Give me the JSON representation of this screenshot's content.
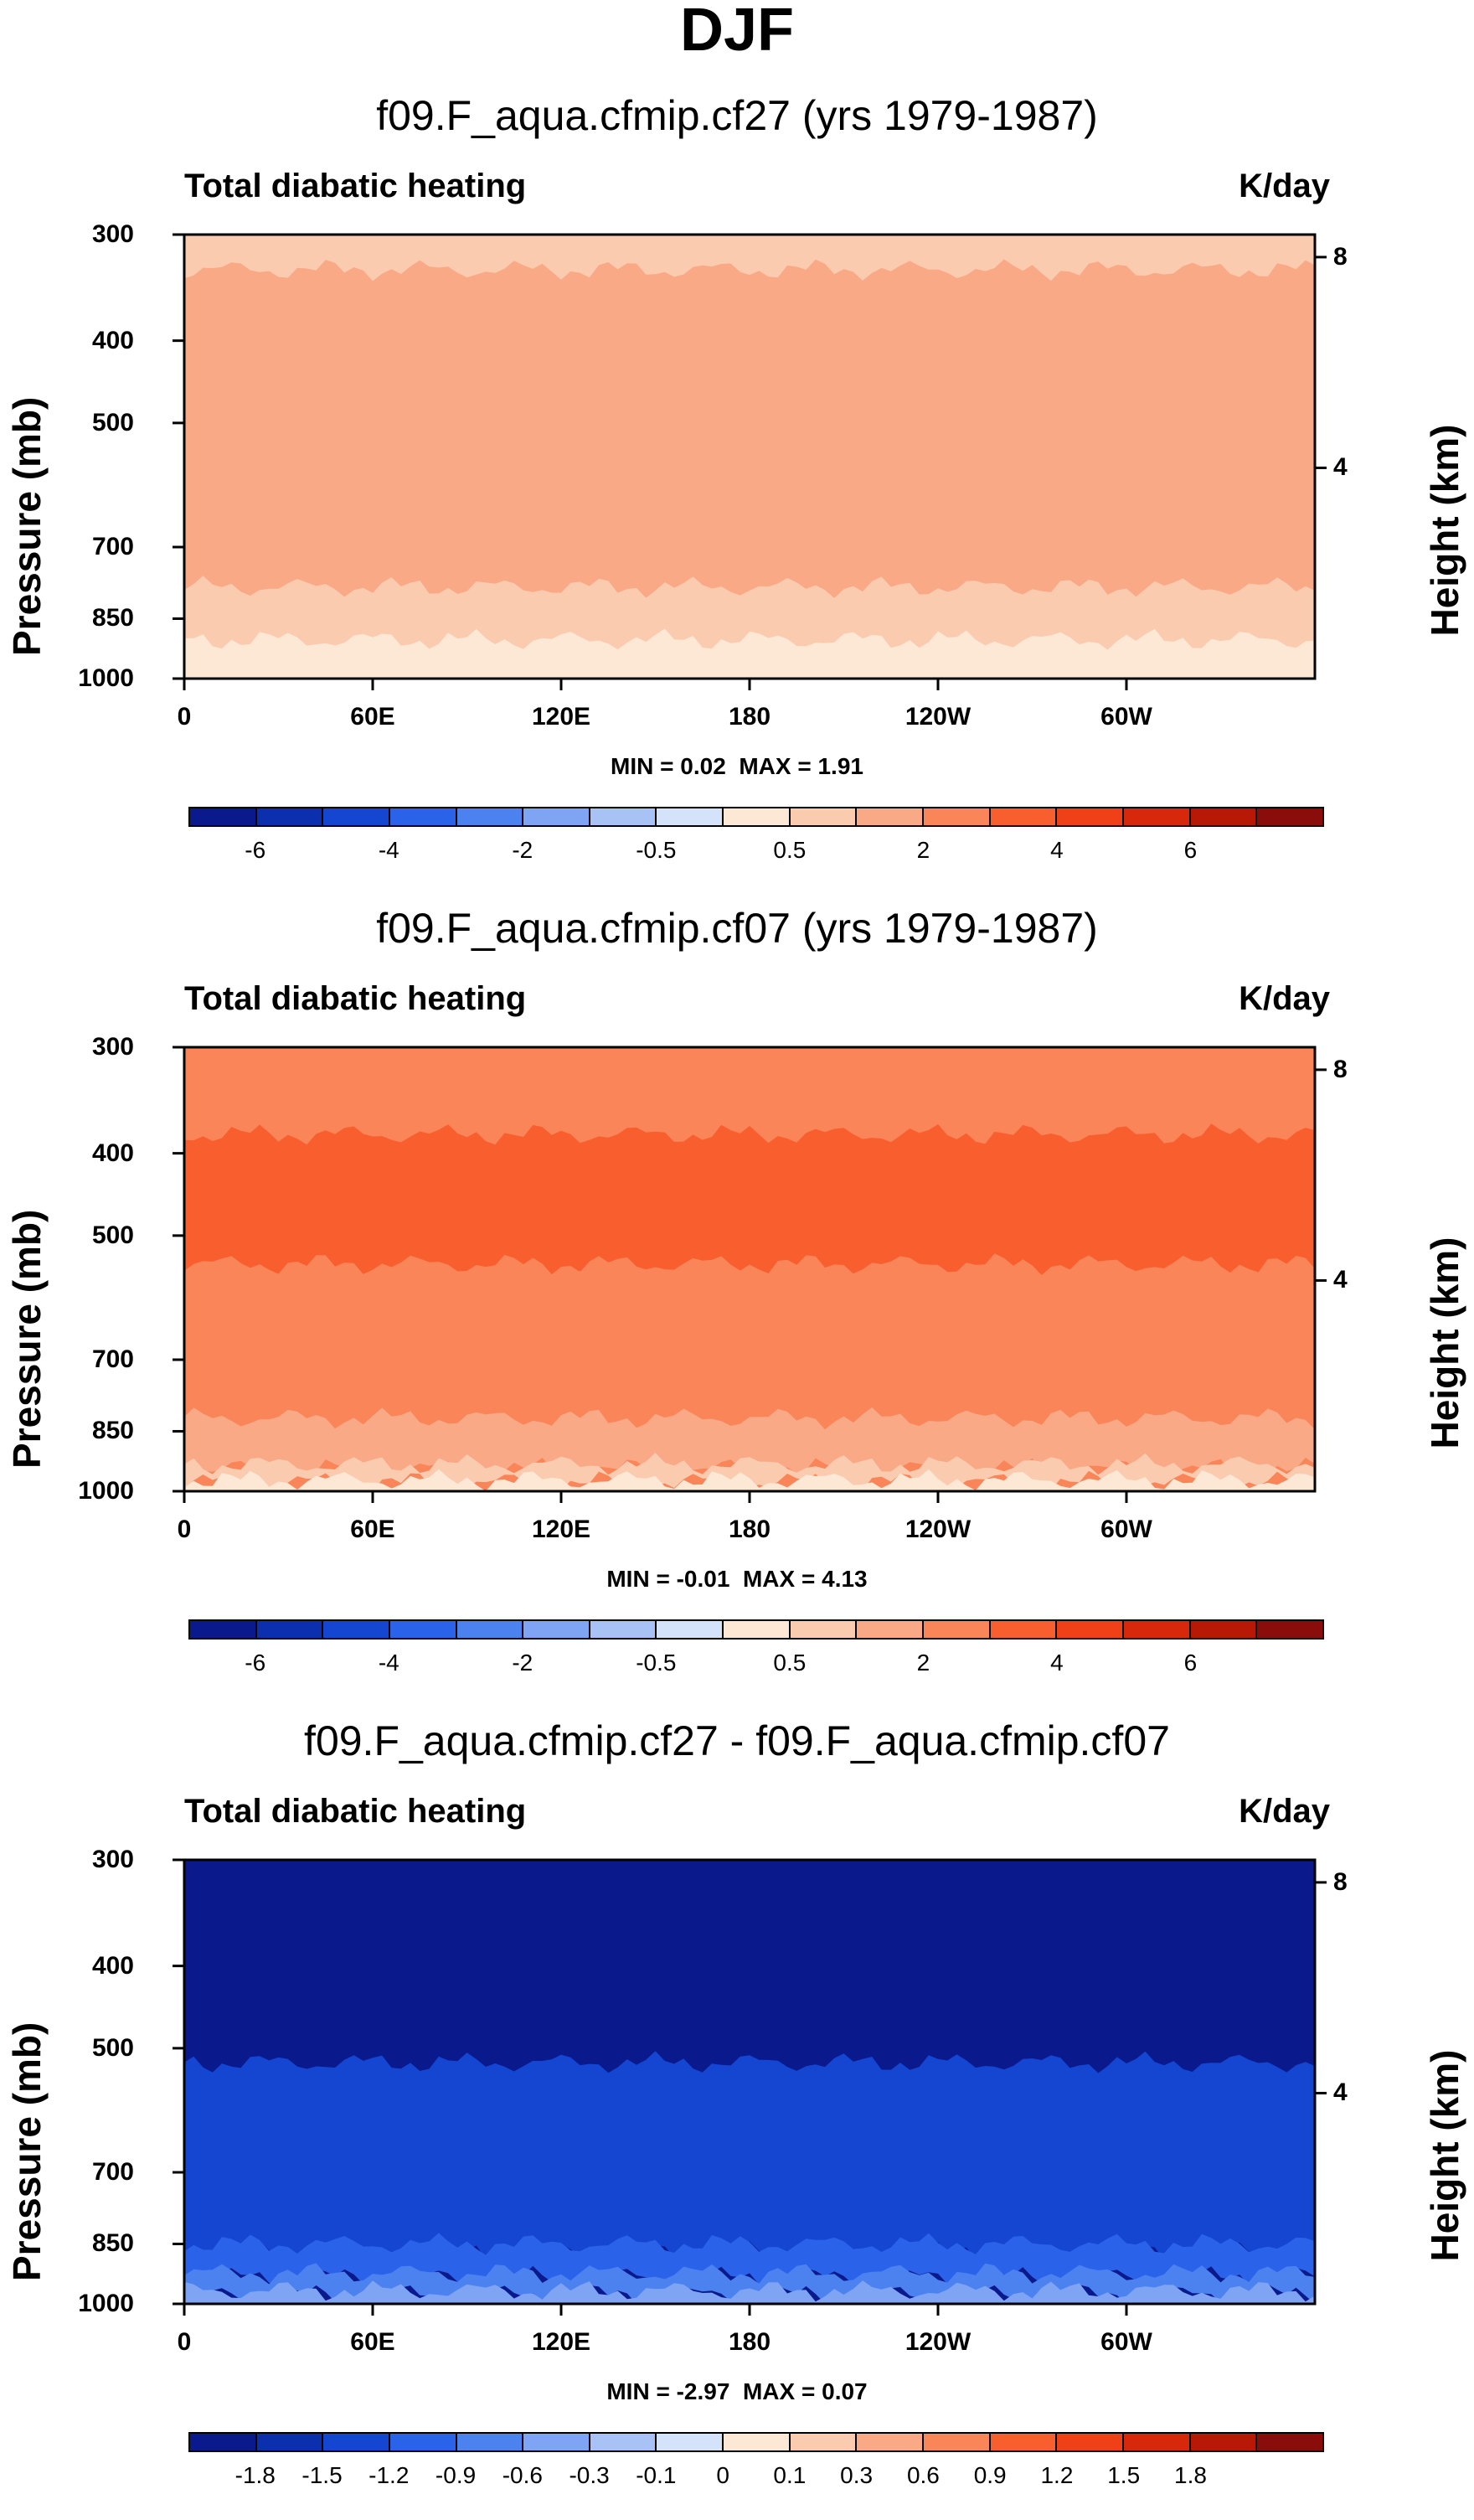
{
  "figure": {
    "title": "DJF"
  },
  "chart_data": [
    {
      "type": "heatmap",
      "title": "f09.F_aqua.cfmip.cf27 (yrs 1979-1987)",
      "left_label": "Total diabatic heating",
      "right_label": "K/day",
      "xlabel": "",
      "ylabel": "Pressure (mb)",
      "y2label": "Height (km)",
      "x_ticks": [
        "0",
        "60E",
        "120E",
        "180",
        "120W",
        "60W"
      ],
      "x_tick_values": [
        0,
        60,
        120,
        180,
        240,
        300
      ],
      "xlim": [
        0,
        360
      ],
      "y_ticks": [
        "300",
        "400",
        "500",
        "700",
        "850",
        "1000"
      ],
      "y_tick_values": [
        300,
        400,
        500,
        700,
        850,
        1000
      ],
      "ylim": [
        300,
        1000
      ],
      "y2_ticks": [
        "8",
        "4"
      ],
      "y2_tick_values": [
        8,
        4
      ],
      "min_label": "MIN = ",
      "min_value": "0.02",
      "max_label": "MAX = ",
      "max_value": "1.91",
      "colorbar_labels": [
        "-6",
        "-4",
        "-2",
        "-0.5",
        "0.5",
        "2",
        "4",
        "6"
      ],
      "colorbar_levels": [
        -7,
        -6,
        -5,
        -4,
        -3,
        -2,
        -1,
        -0.5,
        0,
        0.5,
        1,
        2,
        3,
        4,
        5,
        6,
        7
      ],
      "colorbar_colors": [
        "#0a1a8c",
        "#0c2fb0",
        "#1446d2",
        "#2a63ea",
        "#4c82f0",
        "#7ea4f3",
        "#a9c2f5",
        "#d5e3fa",
        "#fde7d5",
        "#fbcbb0",
        "#f9a986",
        "#f98559",
        "#f95f2e",
        "#ef4018",
        "#d8280c",
        "#b81906",
        "#8a0d0c"
      ],
      "bands": [
        {
          "p_top": 300,
          "p_bottom": 480,
          "value": 0.5
        },
        {
          "p_top": 330,
          "p_bottom": 820,
          "value": 1.5
        },
        {
          "p_top": 780,
          "p_bottom": 910,
          "value": 0.8
        },
        {
          "p_top": 900,
          "p_bottom": 1000,
          "value": 0.3
        }
      ]
    },
    {
      "type": "heatmap",
      "title": "f09.F_aqua.cfmip.cf07 (yrs 1979-1987)",
      "left_label": "Total diabatic heating",
      "right_label": "K/day",
      "xlabel": "",
      "ylabel": "Pressure (mb)",
      "y2label": "Height (km)",
      "x_ticks": [
        "0",
        "60E",
        "120E",
        "180",
        "120W",
        "60W"
      ],
      "x_tick_values": [
        0,
        60,
        120,
        180,
        240,
        300
      ],
      "xlim": [
        0,
        360
      ],
      "y_ticks": [
        "300",
        "400",
        "500",
        "700",
        "850",
        "1000"
      ],
      "y_tick_values": [
        300,
        400,
        500,
        700,
        850,
        1000
      ],
      "ylim": [
        300,
        1000
      ],
      "y2_ticks": [
        "8",
        "4"
      ],
      "y2_tick_values": [
        8,
        4
      ],
      "min_label": "MIN = ",
      "min_value": "-0.01",
      "max_label": "MAX = ",
      "max_value": "4.13",
      "colorbar_labels": [
        "-6",
        "-4",
        "-2",
        "-0.5",
        "0.5",
        "2",
        "4",
        "6"
      ],
      "colorbar_levels": [
        -7,
        -6,
        -5,
        -4,
        -3,
        -2,
        -1,
        -0.5,
        0,
        0.5,
        1,
        2,
        3,
        4,
        5,
        6,
        7
      ],
      "colorbar_colors": [
        "#0a1a8c",
        "#0c2fb0",
        "#1446d2",
        "#2a63ea",
        "#4c82f0",
        "#7ea4f3",
        "#a9c2f5",
        "#d5e3fa",
        "#fde7d5",
        "#fbcbb0",
        "#f9a986",
        "#f98559",
        "#f95f2e",
        "#ef4018",
        "#d8280c",
        "#b81906",
        "#8a0d0c"
      ],
      "bands": [
        {
          "p_top": 300,
          "p_bottom": 400,
          "value": 2.5
        },
        {
          "p_top": 380,
          "p_bottom": 560,
          "value": 3.5
        },
        {
          "p_top": 540,
          "p_bottom": 840,
          "value": 2.5
        },
        {
          "p_top": 820,
          "p_bottom": 940,
          "value": 1.5
        },
        {
          "p_top": 930,
          "p_bottom": 975,
          "value": 0.8
        },
        {
          "p_top": 970,
          "p_bottom": 1000,
          "value": 0.3
        }
      ]
    },
    {
      "type": "heatmap",
      "title": "f09.F_aqua.cfmip.cf27 - f09.F_aqua.cfmip.cf07",
      "left_label": "Total diabatic heating",
      "right_label": "K/day",
      "xlabel": "",
      "ylabel": "Pressure (mb)",
      "y2label": "Height (km)",
      "x_ticks": [
        "0",
        "60E",
        "120E",
        "180",
        "120W",
        "60W"
      ],
      "x_tick_values": [
        0,
        60,
        120,
        180,
        240,
        300
      ],
      "xlim": [
        0,
        360
      ],
      "y_ticks": [
        "300",
        "400",
        "500",
        "700",
        "850",
        "1000"
      ],
      "y_tick_values": [
        300,
        400,
        500,
        700,
        850,
        1000
      ],
      "ylim": [
        300,
        1000
      ],
      "y2_ticks": [
        "8",
        "4"
      ],
      "y2_tick_values": [
        8,
        4
      ],
      "min_label": "MIN = ",
      "min_value": "-2.97",
      "max_label": "MAX = ",
      "max_value": "0.07",
      "colorbar_labels": [
        "-1.8",
        "-1.5",
        "-1.2",
        "-0.9",
        "-0.6",
        "-0.3",
        "-0.1",
        "0",
        "0.1",
        "0.3",
        "0.6",
        "0.9",
        "1.2",
        "1.5",
        "1.8"
      ],
      "colorbar_levels": [
        -2.1,
        -1.8,
        -1.5,
        -1.2,
        -0.9,
        -0.6,
        -0.3,
        -0.1,
        0,
        0.1,
        0.3,
        0.6,
        0.9,
        1.2,
        1.5,
        1.8,
        2.1
      ],
      "colorbar_colors": [
        "#0a1a8c",
        "#0c2fb0",
        "#1446d2",
        "#2a63ea",
        "#4c82f0",
        "#7ea4f3",
        "#a9c2f5",
        "#d5e3fa",
        "#fde7d5",
        "#fbcbb0",
        "#f9a986",
        "#f98559",
        "#f95f2e",
        "#ef4018",
        "#d8280c",
        "#b81906",
        "#8a0d0c"
      ],
      "bands": [
        {
          "p_top": 300,
          "p_bottom": 580,
          "value": -2.2
        },
        {
          "p_top": 520,
          "p_bottom": 870,
          "value": -1.4
        },
        {
          "p_top": 850,
          "p_bottom": 930,
          "value": -1.0
        },
        {
          "p_top": 920,
          "p_bottom": 975,
          "value": -0.7
        },
        {
          "p_top": 965,
          "p_bottom": 1000,
          "value": -0.4
        }
      ]
    }
  ]
}
